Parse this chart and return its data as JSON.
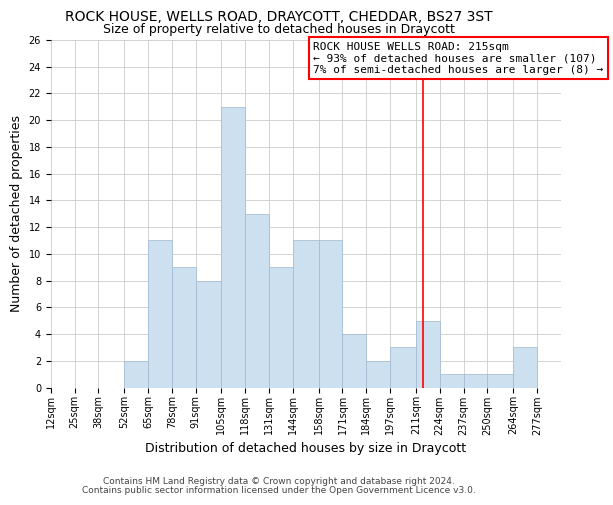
{
  "title": "ROCK HOUSE, WELLS ROAD, DRAYCOTT, CHEDDAR, BS27 3ST",
  "subtitle": "Size of property relative to detached houses in Draycott",
  "xlabel": "Distribution of detached houses by size in Draycott",
  "ylabel": "Number of detached properties",
  "bin_labels": [
    "12sqm",
    "25sqm",
    "38sqm",
    "52sqm",
    "65sqm",
    "78sqm",
    "91sqm",
    "105sqm",
    "118sqm",
    "131sqm",
    "144sqm",
    "158sqm",
    "171sqm",
    "184sqm",
    "197sqm",
    "211sqm",
    "224sqm",
    "237sqm",
    "250sqm",
    "264sqm",
    "277sqm"
  ],
  "bin_edges": [
    12,
    25,
    38,
    52,
    65,
    78,
    91,
    105,
    118,
    131,
    144,
    158,
    171,
    184,
    197,
    211,
    224,
    237,
    250,
    264,
    277
  ],
  "counts": [
    0,
    0,
    0,
    2,
    11,
    9,
    8,
    21,
    13,
    9,
    11,
    11,
    4,
    2,
    3,
    5,
    1,
    1,
    1,
    3,
    0
  ],
  "bar_color": "#cce0f0",
  "bar_edge_color": "#a0b8d0",
  "vline_x": 215,
  "vline_color": "red",
  "annotation_line1": "ROCK HOUSE WELLS ROAD: 215sqm",
  "annotation_line2": "← 93% of detached houses are smaller (107)",
  "annotation_line3": "7% of semi-detached houses are larger (8) →",
  "ylim": [
    0,
    26
  ],
  "yticks": [
    0,
    2,
    4,
    6,
    8,
    10,
    12,
    14,
    16,
    18,
    20,
    22,
    24,
    26
  ],
  "grid_color": "#cccccc",
  "footnote1": "Contains HM Land Registry data © Crown copyright and database right 2024.",
  "footnote2": "Contains public sector information licensed under the Open Government Licence v3.0.",
  "background_color": "#ffffff",
  "title_fontsize": 10,
  "subtitle_fontsize": 9,
  "label_fontsize": 9,
  "tick_fontsize": 7,
  "annotation_fontsize": 8,
  "footnote_fontsize": 6.5
}
